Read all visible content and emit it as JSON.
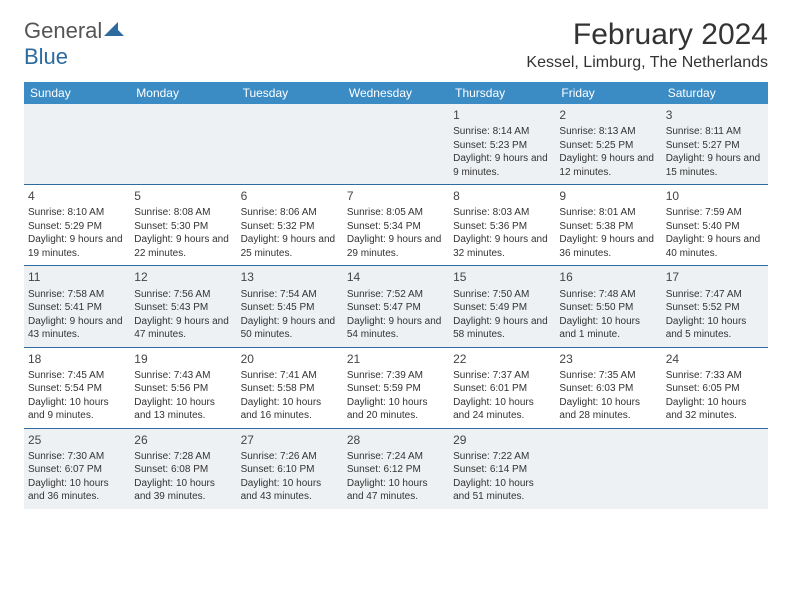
{
  "logo": {
    "text1": "General",
    "text2": "Blue"
  },
  "header": {
    "title": "February 2024",
    "location": "Kessel, Limburg, The Netherlands"
  },
  "colors": {
    "header_bar": "#3b8bc4",
    "row_divider": "#2c6aa0",
    "shaded_bg": "#eef1f3",
    "logo_gray": "#555555",
    "logo_blue": "#2c6aa0"
  },
  "days_of_week": [
    "Sunday",
    "Monday",
    "Tuesday",
    "Wednesday",
    "Thursday",
    "Friday",
    "Saturday"
  ],
  "weeks": [
    [
      null,
      null,
      null,
      null,
      {
        "n": "1",
        "sr": "8:14 AM",
        "ss": "5:23 PM",
        "dl": "9 hours and 9 minutes."
      },
      {
        "n": "2",
        "sr": "8:13 AM",
        "ss": "5:25 PM",
        "dl": "9 hours and 12 minutes."
      },
      {
        "n": "3",
        "sr": "8:11 AM",
        "ss": "5:27 PM",
        "dl": "9 hours and 15 minutes."
      }
    ],
    [
      {
        "n": "4",
        "sr": "8:10 AM",
        "ss": "5:29 PM",
        "dl": "9 hours and 19 minutes."
      },
      {
        "n": "5",
        "sr": "8:08 AM",
        "ss": "5:30 PM",
        "dl": "9 hours and 22 minutes."
      },
      {
        "n": "6",
        "sr": "8:06 AM",
        "ss": "5:32 PM",
        "dl": "9 hours and 25 minutes."
      },
      {
        "n": "7",
        "sr": "8:05 AM",
        "ss": "5:34 PM",
        "dl": "9 hours and 29 minutes."
      },
      {
        "n": "8",
        "sr": "8:03 AM",
        "ss": "5:36 PM",
        "dl": "9 hours and 32 minutes."
      },
      {
        "n": "9",
        "sr": "8:01 AM",
        "ss": "5:38 PM",
        "dl": "9 hours and 36 minutes."
      },
      {
        "n": "10",
        "sr": "7:59 AM",
        "ss": "5:40 PM",
        "dl": "9 hours and 40 minutes."
      }
    ],
    [
      {
        "n": "11",
        "sr": "7:58 AM",
        "ss": "5:41 PM",
        "dl": "9 hours and 43 minutes."
      },
      {
        "n": "12",
        "sr": "7:56 AM",
        "ss": "5:43 PM",
        "dl": "9 hours and 47 minutes."
      },
      {
        "n": "13",
        "sr": "7:54 AM",
        "ss": "5:45 PM",
        "dl": "9 hours and 50 minutes."
      },
      {
        "n": "14",
        "sr": "7:52 AM",
        "ss": "5:47 PM",
        "dl": "9 hours and 54 minutes."
      },
      {
        "n": "15",
        "sr": "7:50 AM",
        "ss": "5:49 PM",
        "dl": "9 hours and 58 minutes."
      },
      {
        "n": "16",
        "sr": "7:48 AM",
        "ss": "5:50 PM",
        "dl": "10 hours and 1 minute."
      },
      {
        "n": "17",
        "sr": "7:47 AM",
        "ss": "5:52 PM",
        "dl": "10 hours and 5 minutes."
      }
    ],
    [
      {
        "n": "18",
        "sr": "7:45 AM",
        "ss": "5:54 PM",
        "dl": "10 hours and 9 minutes."
      },
      {
        "n": "19",
        "sr": "7:43 AM",
        "ss": "5:56 PM",
        "dl": "10 hours and 13 minutes."
      },
      {
        "n": "20",
        "sr": "7:41 AM",
        "ss": "5:58 PM",
        "dl": "10 hours and 16 minutes."
      },
      {
        "n": "21",
        "sr": "7:39 AM",
        "ss": "5:59 PM",
        "dl": "10 hours and 20 minutes."
      },
      {
        "n": "22",
        "sr": "7:37 AM",
        "ss": "6:01 PM",
        "dl": "10 hours and 24 minutes."
      },
      {
        "n": "23",
        "sr": "7:35 AM",
        "ss": "6:03 PM",
        "dl": "10 hours and 28 minutes."
      },
      {
        "n": "24",
        "sr": "7:33 AM",
        "ss": "6:05 PM",
        "dl": "10 hours and 32 minutes."
      }
    ],
    [
      {
        "n": "25",
        "sr": "7:30 AM",
        "ss": "6:07 PM",
        "dl": "10 hours and 36 minutes."
      },
      {
        "n": "26",
        "sr": "7:28 AM",
        "ss": "6:08 PM",
        "dl": "10 hours and 39 minutes."
      },
      {
        "n": "27",
        "sr": "7:26 AM",
        "ss": "6:10 PM",
        "dl": "10 hours and 43 minutes."
      },
      {
        "n": "28",
        "sr": "7:24 AM",
        "ss": "6:12 PM",
        "dl": "10 hours and 47 minutes."
      },
      {
        "n": "29",
        "sr": "7:22 AM",
        "ss": "6:14 PM",
        "dl": "10 hours and 51 minutes."
      },
      null,
      null
    ]
  ],
  "labels": {
    "sunrise": "Sunrise: ",
    "sunset": "Sunset: ",
    "daylight": "Daylight: "
  }
}
